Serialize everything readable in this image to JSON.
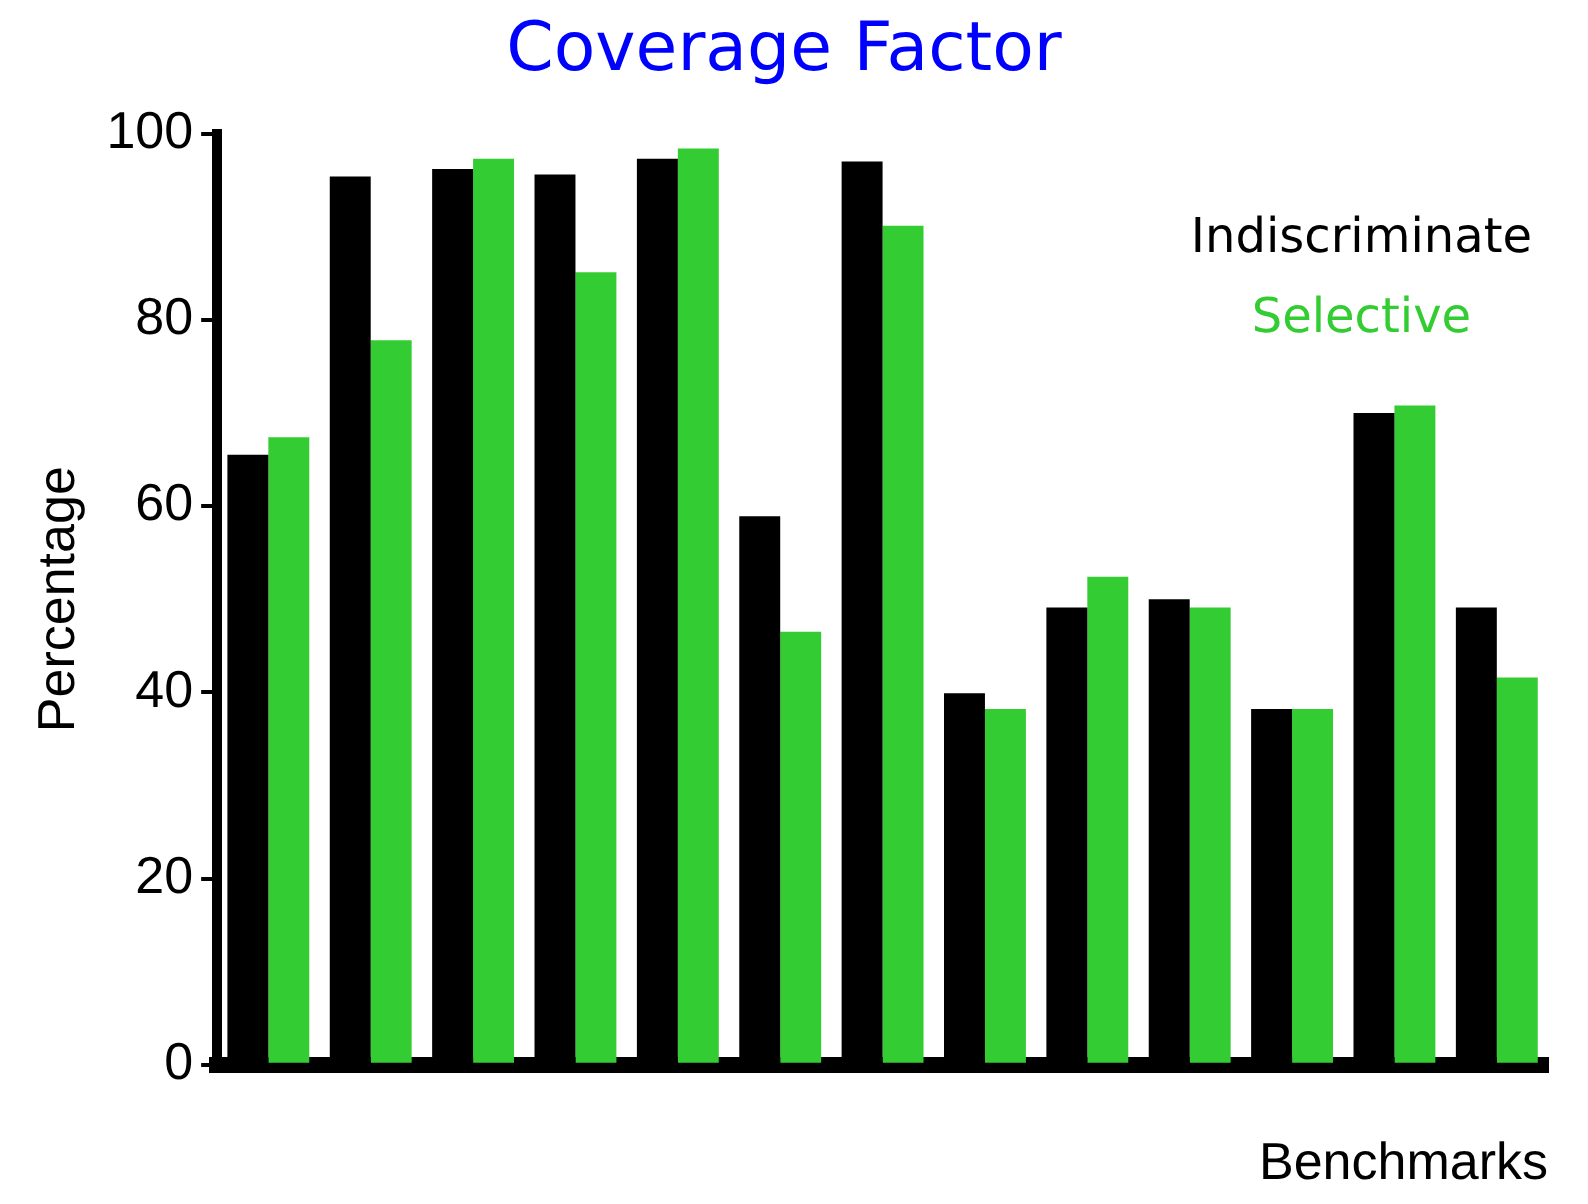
{
  "chart_data": {
    "type": "bar",
    "title": "Coverage Factor",
    "ylabel": "Percentage",
    "xlabel": "Benchmarks",
    "categories": [
      null,
      null,
      null,
      null,
      null,
      null,
      null,
      null,
      null,
      null,
      null,
      null,
      null
    ],
    "series": [
      {
        "name": "Indiscriminate",
        "color": "#000000",
        "values": [
          65.5,
          95.4,
          96.2,
          95.6,
          97.3,
          58.9,
          97.0,
          39.9,
          49.1,
          50.0,
          38.2,
          70.0,
          49.1
        ]
      },
      {
        "name": "Selective",
        "color": "#33cc33",
        "values": [
          67.4,
          77.8,
          97.3,
          85.1,
          98.4,
          46.5,
          90.1,
          38.2,
          52.4,
          49.1,
          38.2,
          70.8,
          41.6
        ]
      }
    ],
    "ylim": [
      0,
      100
    ],
    "yticks": [
      0,
      20,
      40,
      60,
      80,
      100
    ],
    "grid": false,
    "legend": "top right"
  }
}
